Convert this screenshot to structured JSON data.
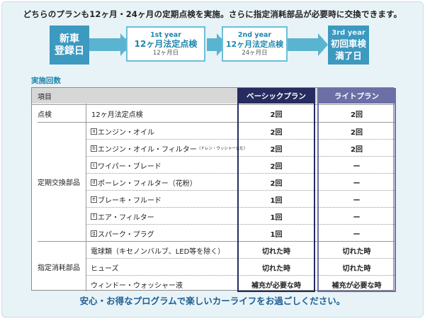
{
  "intro": "どちらのプランも12ヶ月・24ヶ月の定期点検を実施。さらに指定消耗部品が必要時に交換できます。",
  "timeline": {
    "start": {
      "line1": "新車",
      "line2": "登録日"
    },
    "first": {
      "year": "1st year",
      "main": "12ヶ月法定点検",
      "sub": "12ヶ月日"
    },
    "second": {
      "year": "2nd year",
      "main": "12ヶ月法定点検",
      "sub": "24ヶ月日"
    },
    "end": {
      "year": "3rd year",
      "line1": "初回車検",
      "line2": "満了日"
    }
  },
  "section_label": "実施回数",
  "table": {
    "header": {
      "item": "項目",
      "basic": "ベーシックプラン",
      "light": "ライトプラン"
    },
    "inspection": {
      "category": "点検",
      "item": "12ヶ月法定点検",
      "basic": "2回",
      "light": "2回"
    },
    "regular_category": "定期交換部品",
    "regular": [
      {
        "letter": "a",
        "name": "エンジン・オイル",
        "note": "",
        "basic": "2回",
        "light": "2回"
      },
      {
        "letter": "b",
        "name": "エンジン・オイル・フィルター",
        "note": "（ドレン・ウッシャー含む）",
        "basic": "2回",
        "light": "2回"
      },
      {
        "letter": "c",
        "name": "ワイパー・ブレード",
        "note": "",
        "basic": "2回",
        "light": "ー"
      },
      {
        "letter": "d",
        "name": "ポーレン・フィルター（花粉）",
        "note": "",
        "basic": "2回",
        "light": "ー"
      },
      {
        "letter": "e",
        "name": "ブレーキ・フルード",
        "note": "",
        "basic": "1回",
        "light": "ー"
      },
      {
        "letter": "f",
        "name": "エア・フィルター",
        "note": "",
        "basic": "1回",
        "light": "ー"
      },
      {
        "letter": "g",
        "name": "スパーク・プラグ",
        "note": "",
        "basic": "1回",
        "light": "ー"
      }
    ],
    "consumable_category": "指定消耗部品",
    "consumables": [
      {
        "name": "電球類（キセノンバルブ、LED等を除く）",
        "basic": "切れた時",
        "light": "切れた時"
      },
      {
        "name": "ヒューズ",
        "basic": "切れた時",
        "light": "切れた時"
      },
      {
        "name": "ウィンドー・ウォッシャー液",
        "basic": "補充が必要な時",
        "light": "補充が必要な時"
      }
    ]
  },
  "footer": "安心・お得なプログラムで楽しいカーライフをお過ごしください。",
  "colors": {
    "accent": "#3c99bf",
    "basic": "#262c5f",
    "light": "#6b6fa6"
  }
}
